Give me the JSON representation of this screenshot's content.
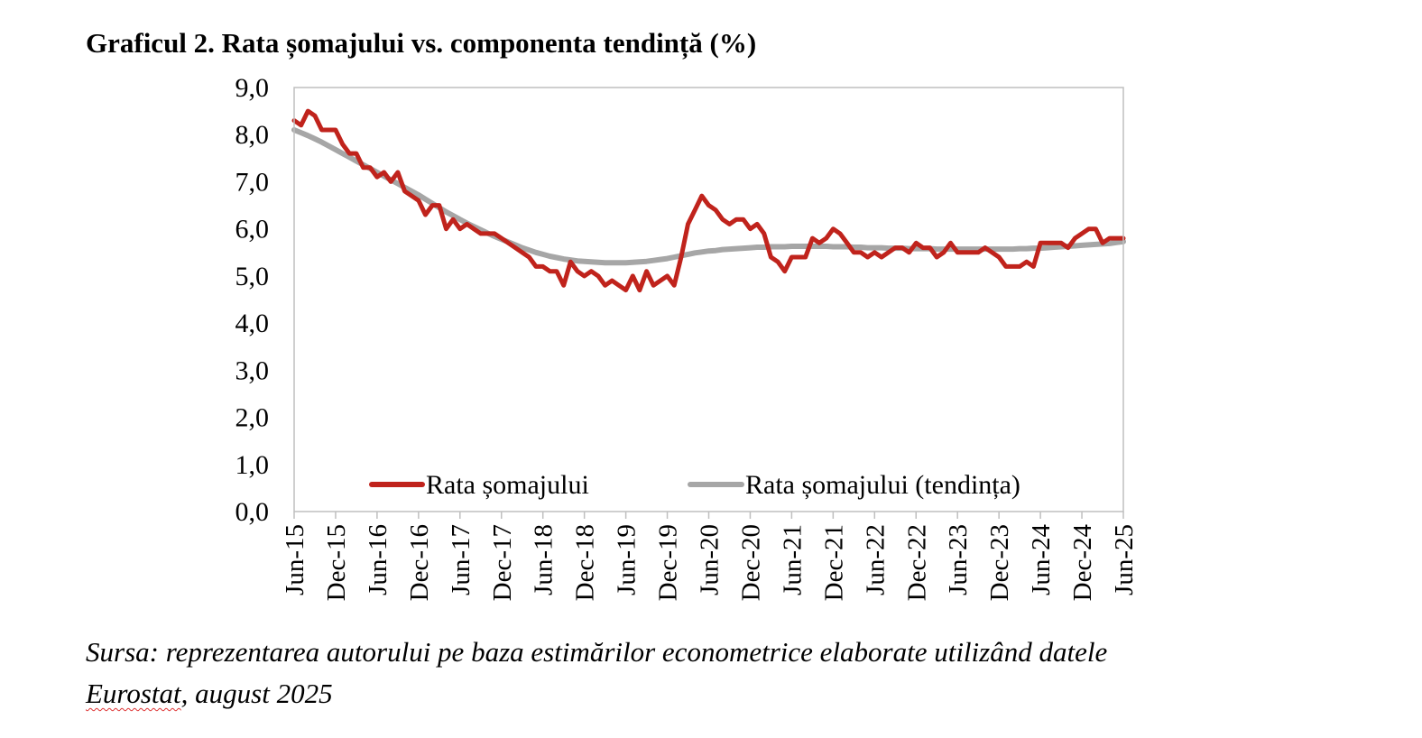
{
  "title": "Graficul 2. Rata șomajului vs. componenta tendință (%)",
  "source": {
    "line1": "Sursa: reprezentarea autorului pe baza estimărilor econometrice elaborate utilizând datele",
    "word1": "Eurostat",
    "line2_rest": ", august 2025"
  },
  "colors": {
    "rate": "#C0231C",
    "trend": "#A6A6A6",
    "axis": "#BFBFBF"
  },
  "chart_data": {
    "type": "line",
    "title": "Graficul 2. Rata șomajului vs. componenta tendință (%)",
    "xlabel": "",
    "ylabel": "",
    "ylim": [
      0,
      9
    ],
    "yticks": [
      "0,0",
      "1,0",
      "2,0",
      "3,0",
      "4,0",
      "5,0",
      "6,0",
      "7,0",
      "8,0",
      "9,0"
    ],
    "x_start": "Jun-15",
    "x_end": "Jun-25",
    "xtick_labels": [
      "Jun-15",
      "Dec-15",
      "Jun-16",
      "Dec-16",
      "Jun-17",
      "Dec-17",
      "Jun-18",
      "Dec-18",
      "Jun-19",
      "Dec-19",
      "Jun-20",
      "Dec-20",
      "Jun-21",
      "Dec-21",
      "Jun-22",
      "Dec-22",
      "Jun-23",
      "Dec-23",
      "Jun-24",
      "Dec-24",
      "Jun-25"
    ],
    "grid": false,
    "legend_position": "bottom",
    "series": [
      {
        "name": "Rata șomajului",
        "color": "#C0231C",
        "values": [
          8.3,
          8.2,
          8.5,
          8.4,
          8.1,
          8.1,
          8.1,
          7.8,
          7.6,
          7.6,
          7.3,
          7.3,
          7.1,
          7.2,
          7.0,
          7.2,
          6.8,
          6.7,
          6.6,
          6.3,
          6.5,
          6.5,
          6.0,
          6.2,
          6.0,
          6.1,
          6.0,
          5.9,
          5.9,
          5.9,
          5.8,
          5.7,
          5.6,
          5.5,
          5.4,
          5.2,
          5.2,
          5.1,
          5.1,
          4.8,
          5.3,
          5.1,
          5.0,
          5.1,
          5.0,
          4.8,
          4.9,
          4.8,
          4.7,
          5.0,
          4.7,
          5.1,
          4.8,
          4.9,
          5.0,
          4.8,
          5.4,
          6.1,
          6.4,
          6.7,
          6.5,
          6.4,
          6.2,
          6.1,
          6.2,
          6.2,
          6.0,
          6.1,
          5.9,
          5.4,
          5.3,
          5.1,
          5.4,
          5.4,
          5.4,
          5.8,
          5.7,
          5.8,
          6.0,
          5.9,
          5.7,
          5.5,
          5.5,
          5.4,
          5.5,
          5.4,
          5.5,
          5.6,
          5.6,
          5.5,
          5.7,
          5.6,
          5.6,
          5.4,
          5.5,
          5.7,
          5.5,
          5.5,
          5.5,
          5.5,
          5.6,
          5.5,
          5.4,
          5.2,
          5.2,
          5.2,
          5.3,
          5.2,
          5.7,
          5.7,
          5.7,
          5.7,
          5.6,
          5.8,
          5.9,
          6.0,
          6.0,
          5.7,
          5.8,
          5.8,
          5.8
        ]
      },
      {
        "name": "Rata șomajului (tendința)",
        "color": "#A6A6A6",
        "values": [
          8.1,
          8.04,
          7.98,
          7.91,
          7.84,
          7.76,
          7.68,
          7.6,
          7.52,
          7.44,
          7.36,
          7.28,
          7.2,
          7.12,
          7.04,
          6.96,
          6.88,
          6.8,
          6.72,
          6.63,
          6.54,
          6.45,
          6.36,
          6.28,
          6.2,
          6.12,
          6.05,
          5.98,
          5.91,
          5.84,
          5.78,
          5.72,
          5.66,
          5.6,
          5.55,
          5.5,
          5.46,
          5.42,
          5.39,
          5.36,
          5.34,
          5.32,
          5.31,
          5.3,
          5.29,
          5.28,
          5.28,
          5.28,
          5.28,
          5.29,
          5.3,
          5.31,
          5.33,
          5.35,
          5.37,
          5.4,
          5.43,
          5.46,
          5.49,
          5.51,
          5.53,
          5.54,
          5.56,
          5.57,
          5.58,
          5.59,
          5.6,
          5.61,
          5.61,
          5.62,
          5.62,
          5.62,
          5.63,
          5.63,
          5.63,
          5.63,
          5.63,
          5.63,
          5.62,
          5.62,
          5.62,
          5.61,
          5.61,
          5.6,
          5.6,
          5.6,
          5.59,
          5.59,
          5.59,
          5.58,
          5.58,
          5.58,
          5.58,
          5.57,
          5.57,
          5.57,
          5.57,
          5.57,
          5.57,
          5.57,
          5.57,
          5.57,
          5.57,
          5.57,
          5.57,
          5.58,
          5.58,
          5.59,
          5.59,
          5.6,
          5.61,
          5.62,
          5.63,
          5.64,
          5.65,
          5.66,
          5.67,
          5.68,
          5.69,
          5.71,
          5.73
        ]
      }
    ]
  }
}
